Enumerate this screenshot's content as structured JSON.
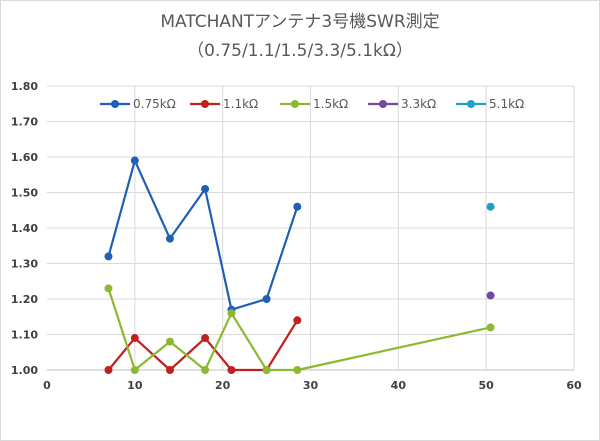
{
  "chart_data": {
    "type": "line",
    "title": "MATCHANTアンテナ3号機SWR測定",
    "subtitle": "（0.75/1.1/1.5/3.3/5.1kΩ）",
    "xlabel": "",
    "ylabel": "",
    "xlim": [
      0,
      60
    ],
    "ylim": [
      1.0,
      1.8
    ],
    "x_ticks": [
      "0",
      "10",
      "20",
      "30",
      "40",
      "50",
      "60"
    ],
    "y_ticks": [
      "1.00",
      "1.10",
      "1.20",
      "1.30",
      "1.40",
      "1.50",
      "1.60",
      "1.70",
      "1.80"
    ],
    "grid": true,
    "legend_position": "top",
    "series": [
      {
        "name": "0.75kΩ",
        "color": "#1f5fb4",
        "x": [
          7,
          10,
          14,
          18,
          21,
          25,
          28.5
        ],
        "y": [
          1.32,
          1.59,
          1.37,
          1.51,
          1.17,
          1.2,
          1.46
        ]
      },
      {
        "name": "1.1kΩ",
        "color": "#c0201e",
        "x": [
          7,
          10,
          14,
          18,
          21,
          25,
          28.5
        ],
        "y": [
          1.0,
          1.09,
          1.0,
          1.09,
          1.0,
          1.0,
          1.14
        ]
      },
      {
        "name": "1.5kΩ",
        "color": "#8db832",
        "x": [
          7,
          10,
          14,
          18,
          21,
          25,
          28.5,
          50.5
        ],
        "y": [
          1.23,
          1.0,
          1.08,
          1.0,
          1.16,
          1.0,
          1.0,
          1.12
        ]
      },
      {
        "name": "3.3kΩ",
        "color": "#7149a0",
        "x": [
          50.5
        ],
        "y": [
          1.21
        ]
      },
      {
        "name": "5.1kΩ",
        "color": "#1fa0c8",
        "x": [
          50.5
        ],
        "y": [
          1.46
        ]
      }
    ]
  }
}
